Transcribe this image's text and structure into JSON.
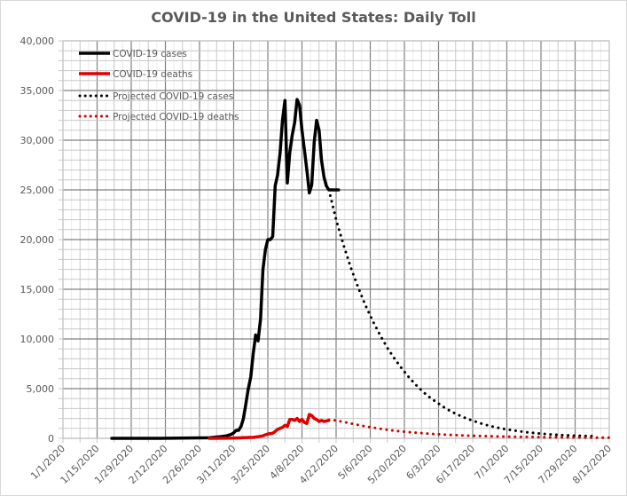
{
  "chart_data": {
    "type": "line",
    "title": "COVID-19 in the United States: Daily Toll",
    "xlabel": "",
    "ylabel": "",
    "ylim": [
      0,
      40000
    ],
    "y_ticks": [
      0,
      5000,
      10000,
      15000,
      20000,
      25000,
      30000,
      35000,
      40000
    ],
    "y_tick_labels": [
      "0",
      "5,000",
      "10,000",
      "15,000",
      "20,000",
      "25,000",
      "30,000",
      "35,000",
      "40,000"
    ],
    "x_range_days": [
      0,
      224
    ],
    "x_origin": "1/1/2020",
    "x_tick_labels": [
      "1/1/2020",
      "1/15/2020",
      "1/29/2020",
      "2/12/2020",
      "2/26/2020",
      "3/11/2020",
      "3/25/2020",
      "4/8/2020",
      "4/22/2020",
      "5/6/2020",
      "5/20/2020",
      "6/3/2020",
      "6/17/2020",
      "7/1/2020",
      "7/15/2020",
      "7/29/2020",
      "8/12/2020"
    ],
    "x_tick_days": [
      0,
      14,
      28,
      42,
      56,
      70,
      84,
      98,
      112,
      126,
      140,
      154,
      168,
      182,
      196,
      210,
      224
    ],
    "grid": true,
    "legend": "top-left",
    "series": [
      {
        "name": "COVID-19 cases",
        "style": "solid",
        "color": "#000000",
        "x": [
          20,
          40,
          60,
          64,
          67,
          69,
          70,
          71,
          72,
          73,
          74,
          75,
          76,
          77,
          78,
          79,
          80,
          81,
          82,
          83,
          84,
          85,
          86,
          87,
          88,
          89,
          90,
          91,
          92,
          93,
          94,
          95,
          96,
          97,
          98,
          99,
          100,
          101,
          102,
          103,
          104,
          105,
          106,
          107,
          108,
          109,
          110,
          111,
          112,
          113
        ],
        "values": [
          0,
          0,
          50,
          150,
          250,
          400,
          550,
          800,
          800,
          1200,
          2000,
          3500,
          5000,
          6200,
          8500,
          10400,
          9800,
          12000,
          17000,
          19000,
          20000,
          20000,
          20300,
          25400,
          26500,
          28700,
          32000,
          34000,
          25700,
          28800,
          30500,
          31800,
          34100,
          33500,
          31000,
          29000,
          27000,
          24700,
          25500,
          29800,
          32000,
          31000,
          28000,
          26300,
          25400,
          25000,
          25000,
          25000,
          25000,
          25000
        ]
      },
      {
        "name": "COVID-19 deaths",
        "style": "solid",
        "color": "#e00000",
        "x": [
          60,
          70,
          74,
          78,
          80,
          82,
          83,
          84,
          85,
          86,
          87,
          88,
          89,
          90,
          91,
          92,
          93,
          94,
          95,
          96,
          97,
          98,
          99,
          100,
          101,
          102,
          103,
          104,
          105,
          106,
          107,
          108,
          109
        ],
        "values": [
          0,
          20,
          60,
          100,
          160,
          250,
          360,
          430,
          480,
          500,
          700,
          900,
          1000,
          1100,
          1300,
          1200,
          1900,
          1900,
          1800,
          2000,
          1700,
          1900,
          1600,
          1500,
          2400,
          2300,
          2000,
          1900,
          1700,
          1800,
          1700,
          1750,
          1800
        ]
      },
      {
        "name": "Projected COVID-19 cases",
        "style": "dotted",
        "color": "#000000",
        "x": [
          109,
          112,
          115,
          118,
          121,
          124,
          127,
          130,
          133,
          136,
          139,
          142,
          145,
          148,
          151,
          154,
          157,
          160,
          163,
          166,
          169,
          172,
          175,
          178,
          181,
          184,
          187,
          190,
          193,
          196,
          199,
          202,
          205,
          208,
          211,
          214,
          217
        ],
        "values": [
          25000,
          22000,
          19500,
          17200,
          15200,
          13400,
          11800,
          10400,
          9100,
          8000,
          7000,
          6100,
          5300,
          4600,
          4000,
          3500,
          3000,
          2600,
          2250,
          1950,
          1700,
          1450,
          1250,
          1080,
          940,
          820,
          710,
          620,
          540,
          470,
          410,
          360,
          320,
          290,
          260,
          240,
          220
        ]
      },
      {
        "name": "Projected COVID-19 deaths",
        "style": "dotted",
        "color": "#d00000",
        "x": [
          109,
          112,
          115,
          118,
          121,
          124,
          127,
          130,
          133,
          136,
          139,
          142,
          145,
          148,
          151,
          154,
          157,
          160,
          163,
          166,
          169,
          172,
          175,
          178,
          181,
          184,
          187,
          190,
          193,
          196,
          199,
          202,
          205,
          208,
          211,
          214,
          217,
          220,
          224
        ],
        "values": [
          1850,
          1800,
          1650,
          1500,
          1350,
          1200,
          1080,
          960,
          860,
          770,
          690,
          620,
          560,
          500,
          450,
          410,
          370,
          330,
          300,
          270,
          250,
          230,
          210,
          190,
          175,
          160,
          150,
          140,
          130,
          120,
          110,
          100,
          95,
          90,
          85,
          80,
          75,
          70,
          65
        ]
      }
    ]
  },
  "legend": {
    "items": [
      {
        "label": "COVID-19 cases",
        "style": "solid",
        "color": "#000000"
      },
      {
        "label": "COVID-19 deaths",
        "style": "solid",
        "color": "#e00000"
      },
      {
        "label": "Projected COVID-19 cases",
        "style": "dotted",
        "color": "#000000"
      },
      {
        "label": "Projected COVID-19 deaths",
        "style": "dotted",
        "color": "#d00000"
      }
    ]
  },
  "colors": {
    "grid_major": "#808080",
    "grid_minor": "#c8c8c8",
    "grid_faint": "#ececec",
    "text": "#595959"
  }
}
